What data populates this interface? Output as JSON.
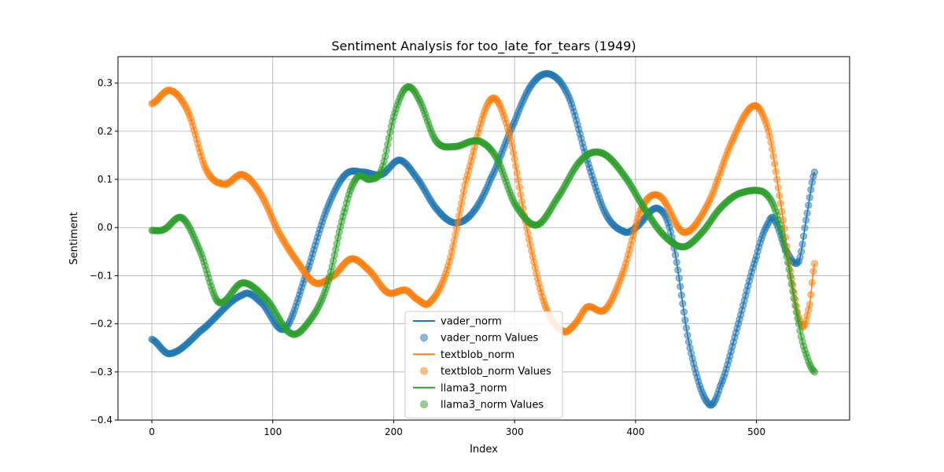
{
  "chart_data": {
    "type": "line",
    "title": "Sentiment Analysis for too_late_for_tears (1949)",
    "xlabel": "Index",
    "ylabel": "Sentiment",
    "xlim": [
      -28,
      577
    ],
    "ylim": [
      -0.4,
      0.355
    ],
    "xticks": [
      0,
      100,
      200,
      300,
      400,
      500
    ],
    "yticks": [
      -0.4,
      -0.3,
      -0.2,
      -0.1,
      0.0,
      0.1,
      0.2,
      0.3
    ],
    "ytick_labels": [
      "−0.4",
      "−0.3",
      "−0.2",
      "−0.1",
      "0.0",
      "0.1",
      "0.2",
      "0.3"
    ],
    "grid": true,
    "legend_position": "bottom-center",
    "n_points": 549,
    "series": [
      {
        "name": "vader_norm",
        "color": "#1f77b4",
        "x": [
          0,
          15,
          40,
          75,
          90,
          110,
          130,
          145,
          160,
          175,
          190,
          205,
          220,
          235,
          250,
          265,
          280,
          300,
          315,
          330,
          345,
          360,
          375,
          390,
          400,
          418,
          430,
          445,
          460,
          470,
          485,
          500,
          510,
          515,
          525,
          535,
          542,
          548
        ],
        "y": [
          -0.232,
          -0.262,
          -0.215,
          -0.14,
          -0.155,
          -0.21,
          -0.08,
          0.04,
          0.11,
          0.115,
          0.11,
          0.14,
          0.1,
          0.04,
          0.01,
          0.03,
          0.1,
          0.22,
          0.3,
          0.318,
          0.27,
          0.14,
          0.03,
          -0.008,
          0.0,
          0.04,
          -0.02,
          -0.25,
          -0.365,
          -0.33,
          -0.2,
          -0.06,
          0.01,
          0.015,
          -0.05,
          -0.07,
          0.03,
          0.115
        ]
      },
      {
        "name": "textblob_norm",
        "color": "#ff7f0e",
        "x": [
          0,
          15,
          30,
          45,
          60,
          75,
          90,
          105,
          120,
          135,
          150,
          165,
          180,
          195,
          210,
          220,
          230,
          245,
          260,
          280,
          295,
          310,
          325,
          340,
          350,
          360,
          375,
          390,
          405,
          420,
          440,
          460,
          480,
          498,
          510,
          520,
          530,
          538,
          544,
          548
        ],
        "y": [
          0.257,
          0.285,
          0.24,
          0.12,
          0.09,
          0.11,
          0.07,
          -0.01,
          -0.07,
          -0.115,
          -0.1,
          -0.065,
          -0.09,
          -0.135,
          -0.13,
          -0.15,
          -0.155,
          -0.08,
          0.1,
          0.265,
          0.2,
          0.0,
          -0.16,
          -0.215,
          -0.2,
          -0.165,
          -0.17,
          -0.09,
          0.04,
          0.065,
          -0.01,
          0.05,
          0.18,
          0.253,
          0.2,
          0.05,
          -0.12,
          -0.205,
          -0.16,
          -0.075
        ]
      },
      {
        "name": "llama3_norm",
        "color": "#2ca02c",
        "x": [
          0,
          10,
          25,
          40,
          55,
          75,
          95,
          115,
          130,
          145,
          160,
          170,
          180,
          190,
          200,
          210,
          220,
          235,
          250,
          270,
          285,
          300,
          318,
          335,
          355,
          372,
          390,
          410,
          425,
          440,
          455,
          470,
          485,
          505,
          515,
          525,
          535,
          542,
          548
        ],
        "y": [
          -0.006,
          -0.004,
          0.02,
          -0.05,
          -0.155,
          -0.115,
          -0.15,
          -0.22,
          -0.195,
          -0.12,
          0.04,
          0.105,
          0.1,
          0.12,
          0.23,
          0.29,
          0.27,
          0.18,
          0.168,
          0.18,
          0.145,
          0.05,
          0.005,
          0.06,
          0.14,
          0.155,
          0.11,
          0.03,
          -0.02,
          -0.04,
          -0.01,
          0.04,
          0.07,
          0.075,
          0.04,
          -0.06,
          -0.2,
          -0.27,
          -0.3
        ]
      }
    ],
    "legend": [
      {
        "label": "vader_norm",
        "kind": "line",
        "color": "#1f77b4"
      },
      {
        "label": "vader_norm Values",
        "kind": "marker",
        "color": "#1f77b4"
      },
      {
        "label": "textblob_norm",
        "kind": "line",
        "color": "#ff7f0e"
      },
      {
        "label": "textblob_norm Values",
        "kind": "marker",
        "color": "#ff7f0e"
      },
      {
        "label": "llama3_norm",
        "kind": "line",
        "color": "#2ca02c"
      },
      {
        "label": "llama3_norm Values",
        "kind": "marker",
        "color": "#2ca02c"
      }
    ]
  }
}
